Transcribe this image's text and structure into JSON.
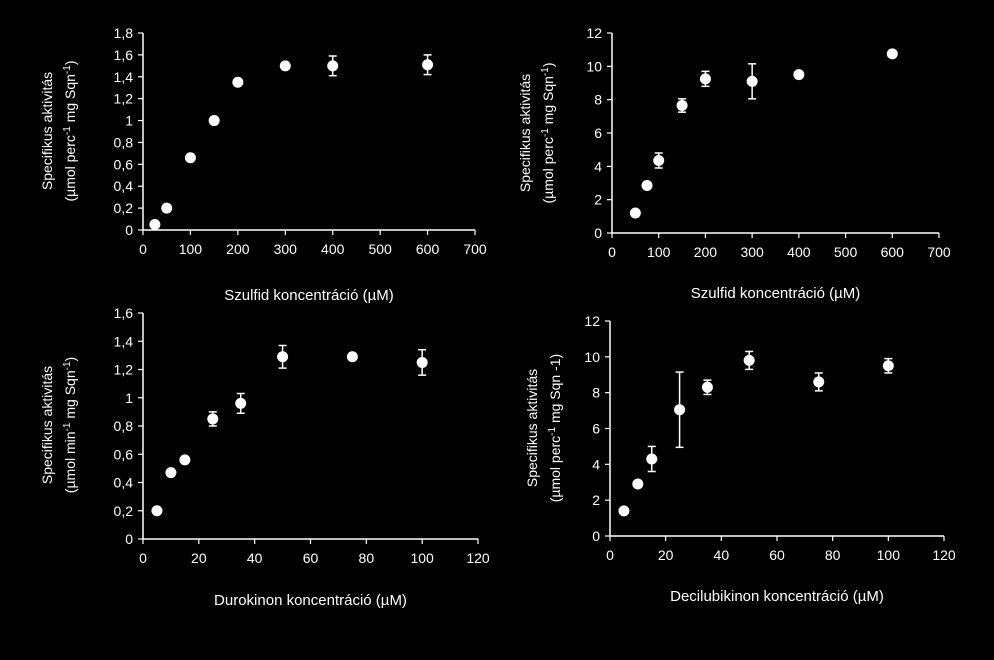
{
  "chart_data": [
    {
      "type": "scatter",
      "xlabel": "Szulfid koncentráció (µM)",
      "ylabel_line1": "Specifikus aktivitás",
      "ylabel_line2_pre": "(µmol perc",
      "ylabel_line2_sup1": "-1",
      "ylabel_line2_mid": " mg Sqn",
      "ylabel_line2_sup2": "-1",
      "ylabel_line2_post": ")",
      "xlim": [
        0,
        700
      ],
      "ylim": [
        0,
        1.8
      ],
      "xticks": [
        "0",
        "100",
        "200",
        "300",
        "400",
        "500",
        "600",
        "700"
      ],
      "yticks": [
        "0",
        "0,2",
        "0,4",
        "0,6",
        "0,8",
        "1",
        "1,2",
        "1,4",
        "1,6",
        "1,8"
      ],
      "grid": false,
      "points": [
        {
          "x": 25,
          "y": 0.05,
          "err": 0.02
        },
        {
          "x": 50,
          "y": 0.2,
          "err": 0.02
        },
        {
          "x": 100,
          "y": 0.66,
          "err": 0.02
        },
        {
          "x": 150,
          "y": 1.0,
          "err": 0.02
        },
        {
          "x": 200,
          "y": 1.35,
          "err": 0.04
        },
        {
          "x": 300,
          "y": 1.5,
          "err": 0.02
        },
        {
          "x": 400,
          "y": 1.5,
          "err": 0.09
        },
        {
          "x": 600,
          "y": 1.51,
          "err": 0.09
        }
      ]
    },
    {
      "type": "scatter",
      "xlabel": "Szulfid koncentráció (µM)",
      "ylabel_line1": "Specifikus aktivitás",
      "ylabel_line2_pre": "(µmol perc",
      "ylabel_line2_sup1": "-1",
      "ylabel_line2_mid": " mg Sqn",
      "ylabel_line2_sup2": "-1",
      "ylabel_line2_post": ")",
      "xlim": [
        0,
        700
      ],
      "ylim": [
        0,
        12
      ],
      "xticks": [
        "0",
        "100",
        "200",
        "300",
        "400",
        "500",
        "600",
        "700"
      ],
      "yticks": [
        "0",
        "2",
        "4",
        "6",
        "8",
        "10",
        "12"
      ],
      "grid": false,
      "points": [
        {
          "x": 50,
          "y": 1.2,
          "err": 0.15
        },
        {
          "x": 75,
          "y": 2.85,
          "err": 0.15
        },
        {
          "x": 100,
          "y": 4.35,
          "err": 0.45
        },
        {
          "x": 150,
          "y": 7.65,
          "err": 0.4
        },
        {
          "x": 200,
          "y": 9.25,
          "err": 0.45
        },
        {
          "x": 300,
          "y": 9.1,
          "err": 1.05
        },
        {
          "x": 400,
          "y": 9.5,
          "err": 0.3
        },
        {
          "x": 600,
          "y": 10.75,
          "err": 0.3
        }
      ]
    },
    {
      "type": "scatter",
      "xlabel": "Durokinon koncentráció (µM)",
      "ylabel_line1": "Specifikus aktivitás",
      "ylabel_line2_pre": "(µmol min",
      "ylabel_line2_sup1": "-1",
      "ylabel_line2_mid": " mg Sqn",
      "ylabel_line2_sup2": "-1",
      "ylabel_line2_post": ")",
      "xlim": [
        0,
        120
      ],
      "ylim": [
        0,
        1.6
      ],
      "xticks": [
        "0",
        "20",
        "40",
        "60",
        "80",
        "100",
        "120"
      ],
      "yticks": [
        "0",
        "0,2",
        "0,4",
        "0,6",
        "0,8",
        "1",
        "1,2",
        "1,4",
        "1,6"
      ],
      "grid": false,
      "points": [
        {
          "x": 5,
          "y": 0.2,
          "err": 0.01
        },
        {
          "x": 10,
          "y": 0.47,
          "err": 0.01
        },
        {
          "x": 15,
          "y": 0.56,
          "err": 0.01
        },
        {
          "x": 25,
          "y": 0.85,
          "err": 0.05
        },
        {
          "x": 35,
          "y": 0.96,
          "err": 0.07
        },
        {
          "x": 50,
          "y": 1.29,
          "err": 0.08
        },
        {
          "x": 75,
          "y": 1.29,
          "err": 0.01
        },
        {
          "x": 100,
          "y": 1.25,
          "err": 0.09
        }
      ]
    },
    {
      "type": "scatter",
      "xlabel": "Decilubikinon koncentráció (µM)",
      "ylabel_line1": "Specifikus aktivitás",
      "ylabel_line2_pre": "(µmol perc",
      "ylabel_line2_sup1": "-1",
      "ylabel_line2_mid": " mg Sqn -1",
      "ylabel_line2_sup2": "",
      "ylabel_line2_post": ")",
      "xlim": [
        0,
        120
      ],
      "ylim": [
        0,
        12
      ],
      "xticks": [
        "0",
        "20",
        "40",
        "60",
        "80",
        "100",
        "120"
      ],
      "yticks": [
        "0",
        "2",
        "4",
        "6",
        "8",
        "10",
        "12"
      ],
      "grid": false,
      "points": [
        {
          "x": 5,
          "y": 1.4,
          "err": 0.1
        },
        {
          "x": 10,
          "y": 2.9,
          "err": 0.1
        },
        {
          "x": 15,
          "y": 4.3,
          "err": 0.7
        },
        {
          "x": 25,
          "y": 7.05,
          "err": 2.1
        },
        {
          "x": 35,
          "y": 8.3,
          "err": 0.4
        },
        {
          "x": 50,
          "y": 9.8,
          "err": 0.5
        },
        {
          "x": 75,
          "y": 8.6,
          "err": 0.5
        },
        {
          "x": 100,
          "y": 9.5,
          "err": 0.4
        }
      ]
    }
  ]
}
